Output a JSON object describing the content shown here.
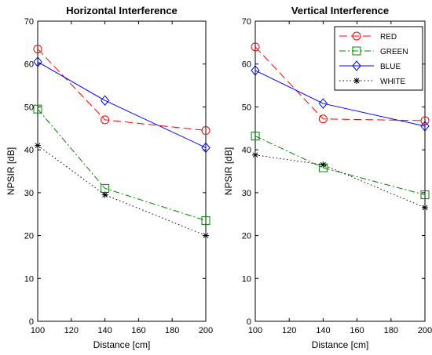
{
  "chart_data": [
    {
      "type": "line",
      "title": "Horizontal Interference",
      "xlabel": "Distance [cm]",
      "ylabel": "NPSIR [dB]",
      "xlim": [
        100,
        200
      ],
      "ylim": [
        0,
        70
      ],
      "xticks": [
        100,
        120,
        140,
        160,
        180,
        200
      ],
      "yticks": [
        0,
        10,
        20,
        30,
        40,
        50,
        60,
        70
      ],
      "x": [
        100,
        140,
        200
      ],
      "grid": false,
      "legend": null,
      "series": [
        {
          "name": "RED",
          "color": "#ff0000",
          "dash": "long-dash",
          "marker": "circle",
          "values": [
            63.5,
            47.0,
            44.5
          ]
        },
        {
          "name": "GREEN",
          "color": "#008000",
          "dash": "dash-dot",
          "marker": "square",
          "values": [
            49.5,
            31.0,
            23.5
          ]
        },
        {
          "name": "BLUE",
          "color": "#0000ff",
          "dash": "solid",
          "marker": "diamond",
          "values": [
            60.5,
            51.5,
            40.5
          ]
        },
        {
          "name": "WHITE",
          "color": "#000000",
          "dash": "dotted",
          "marker": "asterisk",
          "values": [
            41.0,
            29.5,
            20.0
          ]
        }
      ]
    },
    {
      "type": "line",
      "title": "Vertical Interference",
      "xlabel": "Distance [cm]",
      "ylabel": "NPSIR [dB]",
      "xlim": [
        100,
        200
      ],
      "ylim": [
        0,
        70
      ],
      "xticks": [
        100,
        120,
        140,
        160,
        180,
        200
      ],
      "yticks": [
        0,
        10,
        20,
        30,
        40,
        50,
        60,
        70
      ],
      "x": [
        100,
        140,
        200
      ],
      "grid": false,
      "legend": "top-right",
      "series": [
        {
          "name": "RED",
          "color": "#ff0000",
          "dash": "long-dash",
          "marker": "circle",
          "values": [
            64.0,
            47.2,
            46.8
          ]
        },
        {
          "name": "GREEN",
          "color": "#008000",
          "dash": "dash-dot",
          "marker": "square",
          "values": [
            43.2,
            35.8,
            29.5
          ]
        },
        {
          "name": "BLUE",
          "color": "#0000ff",
          "dash": "solid",
          "marker": "diamond",
          "values": [
            58.5,
            50.8,
            45.5
          ]
        },
        {
          "name": "WHITE",
          "color": "#000000",
          "dash": "dotted",
          "marker": "asterisk",
          "values": [
            38.8,
            36.5,
            26.5
          ]
        }
      ]
    }
  ]
}
